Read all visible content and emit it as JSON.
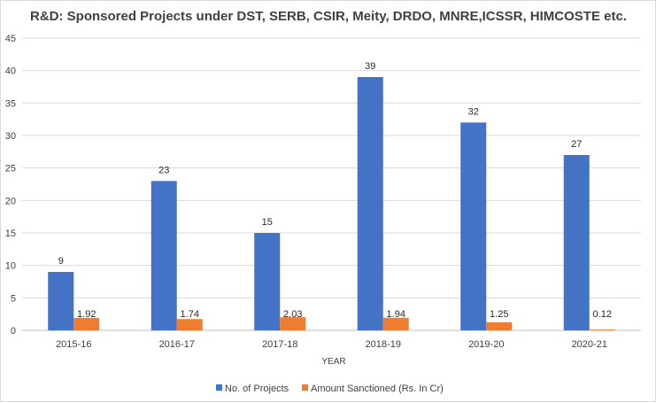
{
  "chart_data": {
    "type": "bar",
    "title": "R&D: Sponsored Projects under DST, SERB, CSIR, Meity, DRDO, MNRE,ICSSR, HIMCOSTE etc.",
    "xlabel": "YEAR",
    "ylabel": "",
    "ylim": [
      0,
      45
    ],
    "yticks": [
      0,
      5,
      10,
      15,
      20,
      25,
      30,
      35,
      40,
      45
    ],
    "grid": true,
    "legend_position": "bottom",
    "categories": [
      "2015-16",
      "2016-17",
      "2017-18",
      "2018-19",
      "2019-20",
      "2020-21"
    ],
    "series": [
      {
        "name": "No. of Projects",
        "color": "#4472c4",
        "values": [
          9,
          23,
          15,
          39,
          32,
          27
        ],
        "labels": [
          "9",
          "23",
          "15",
          "39",
          "32",
          "27"
        ]
      },
      {
        "name": "Amount Sanctioned (Rs. In Cr)",
        "color": "#ed7d31",
        "values": [
          1.92,
          1.74,
          2.03,
          1.94,
          1.25,
          0.12
        ],
        "labels": [
          "1.92",
          "1.74",
          "2.03",
          "1.94",
          "1.25",
          "0.12"
        ]
      }
    ]
  }
}
